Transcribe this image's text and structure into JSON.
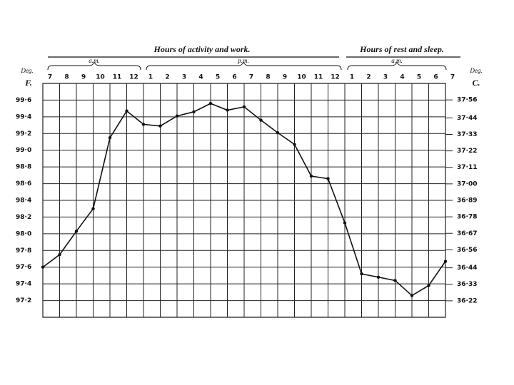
{
  "chart_data": {
    "type": "line",
    "annotations": [
      "Hours of activity and work.",
      "Hours of rest and sleep.",
      "a.m.",
      "p.m.",
      "a.m.",
      "Deg.",
      "F.",
      "Deg.",
      "C."
    ],
    "categories": [
      "7",
      "8",
      "9",
      "10",
      "11",
      "12",
      "1",
      "2",
      "3",
      "4",
      "5",
      "6",
      "7",
      "8",
      "9",
      "10",
      "11",
      "12",
      "1",
      "2",
      "3",
      "4",
      "5",
      "6",
      "7"
    ],
    "series": [
      {
        "color": "#111111",
        "values": [
          97.6,
          97.75,
          98.03,
          98.3,
          99.15,
          99.47,
          99.31,
          99.29,
          99.41,
          99.46,
          99.56,
          99.48,
          99.52,
          99.36,
          99.21,
          99.07,
          98.69,
          98.66,
          98.13,
          97.52,
          97.48,
          97.44,
          97.26,
          97.38,
          97.67
        ]
      }
    ],
    "ylim": [
      97.0,
      99.8
    ],
    "yticks": [
      {
        "value": 99.6,
        "label": "99·6"
      },
      {
        "value": 99.4,
        "label": "99·4"
      },
      {
        "value": 99.2,
        "label": "99·2"
      },
      {
        "value": 99.0,
        "label": "99·0"
      },
      {
        "value": 98.8,
        "label": "98·8"
      },
      {
        "value": 98.6,
        "label": "98·6"
      },
      {
        "value": 98.4,
        "label": "98·4"
      },
      {
        "value": 98.2,
        "label": "98·2"
      },
      {
        "value": 98.0,
        "label": "98·0"
      },
      {
        "value": 97.8,
        "label": "97·8"
      },
      {
        "value": 97.6,
        "label": "97·6"
      },
      {
        "value": 97.4,
        "label": "97·4"
      },
      {
        "value": 97.2,
        "label": "97·2"
      }
    ],
    "y2lim": [
      36.11,
      37.67
    ],
    "y2ticks": [
      {
        "value": 37.56,
        "label": "37·56"
      },
      {
        "value": 37.44,
        "label": "37·44"
      },
      {
        "value": 37.33,
        "label": "37·33"
      },
      {
        "value": 37.22,
        "label": "37·22"
      },
      {
        "value": 37.11,
        "label": "37·11"
      },
      {
        "value": 37.0,
        "label": "37·00"
      },
      {
        "value": 36.89,
        "label": "36·89"
      },
      {
        "value": 36.78,
        "label": "36·78"
      },
      {
        "value": 36.67,
        "label": "36·67"
      },
      {
        "value": 36.56,
        "label": "36·56"
      },
      {
        "value": 36.44,
        "label": "36·44"
      },
      {
        "value": 36.33,
        "label": "36·33"
      },
      {
        "value": 36.22,
        "label": "36·22"
      }
    ],
    "grid": true
  }
}
